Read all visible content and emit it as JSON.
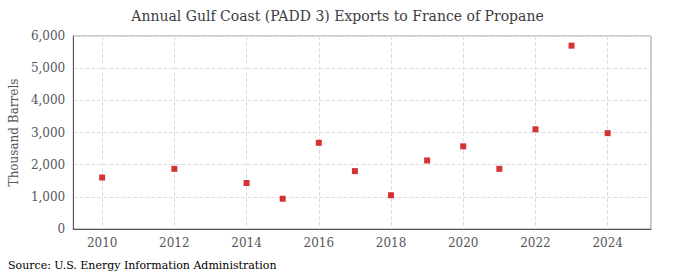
{
  "chart_data": {
    "type": "scatter",
    "title": "Annual Gulf Coast (PADD 3) Exports to France of Propane",
    "ylabel": "Thousand Barrels",
    "annotation": "Source: U.S. Energy Information Administration",
    "x": [
      2010,
      2012,
      2014,
      2015,
      2016,
      2017,
      2018,
      2019,
      2020,
      2021,
      2022,
      2023,
      2024
    ],
    "values": [
      1600,
      1870,
      1430,
      940,
      2680,
      1800,
      1050,
      2130,
      2570,
      1870,
      3100,
      5700,
      2980
    ],
    "color": "#cc0000",
    "marker": "square",
    "xlim": [
      2009.2,
      2025.2
    ],
    "xticks": [
      2010,
      2012,
      2014,
      2016,
      2018,
      2020,
      2022,
      2024
    ],
    "ylim": [
      0,
      6000
    ],
    "yticks": [
      0,
      {
        "value": 1000,
        "label": "1,000"
      },
      {
        "value": 2000,
        "label": "2,000"
      },
      {
        "value": 3000,
        "label": "3,000"
      },
      {
        "value": 4000,
        "label": "4,000"
      },
      {
        "value": 5000,
        "label": "5,000"
      },
      {
        "value": 6000,
        "label": "6,000"
      }
    ],
    "grid": true
  }
}
